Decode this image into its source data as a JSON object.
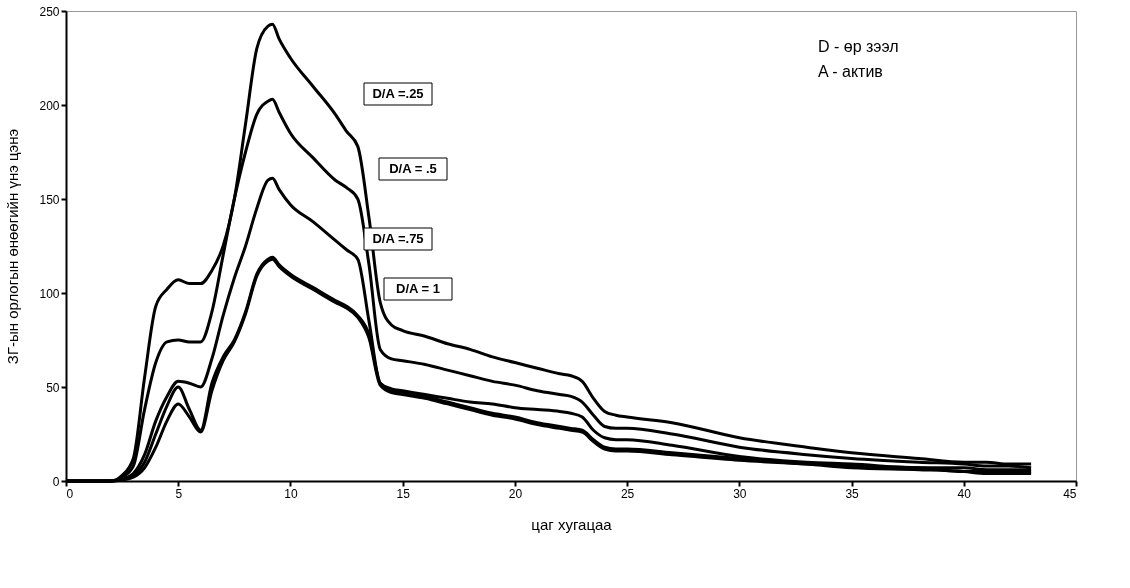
{
  "chart_data": {
    "type": "line",
    "xlabel": "цаг хугацаа",
    "ylabel": "ЗГ-ын орлогын өнөөгийн үнэ цэнэ",
    "x": [
      0,
      2,
      2.5,
      3,
      3.5,
      4,
      4.5,
      5,
      5.5,
      6,
      6.5,
      7,
      7.5,
      8,
      8.5,
      9,
      9.2,
      9.5,
      10,
      11,
      12,
      12.5,
      13,
      13.5,
      14,
      14.5,
      15,
      16,
      17,
      18,
      19,
      20,
      21,
      22,
      22.5,
      23,
      23.5,
      24,
      24.5,
      25,
      27,
      30,
      33,
      35,
      38,
      40,
      41,
      42,
      43
    ],
    "series": [
      {
        "color": "#000000",
        "values": [
          0,
          0,
          3,
          12,
          55,
          93,
          102,
          107,
          105,
          105,
          112,
          125,
          150,
          190,
          230,
          242,
          243,
          235,
          225,
          210,
          195,
          186,
          178,
          140,
          95,
          83,
          80,
          77,
          73,
          70,
          66,
          63,
          60,
          57,
          56,
          53,
          44,
          37,
          35,
          34,
          31,
          23,
          18,
          15,
          12,
          10,
          10,
          9,
          9
        ]
      },
      {
        "color": "#000000",
        "values": [
          0,
          0,
          2,
          8,
          38,
          63,
          74,
          75,
          74,
          74,
          90,
          120,
          150,
          175,
          195,
          202,
          203,
          196,
          185,
          172,
          160,
          156,
          150,
          115,
          70,
          65,
          64,
          62,
          59,
          56,
          53,
          51,
          48,
          46,
          45,
          42,
          35,
          29,
          28,
          28,
          25,
          18,
          14,
          12,
          10,
          9,
          8,
          8,
          7
        ]
      },
      {
        "color": "#000000",
        "values": [
          0,
          0,
          1,
          4,
          14,
          32,
          45,
          53,
          52,
          50,
          65,
          88,
          108,
          125,
          145,
          160,
          161,
          155,
          147,
          138,
          128,
          123,
          118,
          85,
          52,
          49,
          48,
          46,
          44,
          42,
          41,
          39,
          38,
          37,
          36,
          34,
          27,
          23,
          22,
          22,
          19,
          13,
          10,
          9,
          7,
          7,
          6,
          6,
          6
        ]
      },
      {
        "color": "#000000",
        "values": [
          0,
          0,
          1,
          3,
          10,
          25,
          40,
          50,
          38,
          27,
          52,
          66,
          75,
          90,
          110,
          118,
          119,
          115,
          110,
          103,
          96,
          93,
          88,
          78,
          52,
          48,
          47,
          45,
          42,
          39,
          36,
          34,
          31,
          29,
          28,
          27,
          22,
          18,
          17,
          17,
          15,
          12,
          9,
          8,
          7,
          5,
          5,
          5,
          5
        ]
      },
      {
        "color": "#000000",
        "values": [
          0,
          0,
          0.5,
          2,
          7,
          18,
          32,
          41,
          34,
          26,
          48,
          64,
          74,
          89,
          109,
          117,
          118,
          114,
          109,
          102,
          95,
          92,
          87,
          76,
          51,
          47,
          46,
          44,
          41,
          38,
          35,
          33,
          30,
          28,
          27,
          26,
          21,
          17,
          16,
          16,
          14,
          11,
          9,
          7,
          6,
          5,
          4,
          4,
          4
        ]
      }
    ],
    "xlim": [
      0,
      45
    ],
    "xticks": [
      0,
      5,
      10,
      15,
      20,
      25,
      30,
      35,
      40,
      45
    ],
    "ylim": [
      0,
      250
    ],
    "yticks": [
      0,
      50,
      100,
      150,
      200,
      250
    ],
    "grid": false,
    "legend": false,
    "marker": "none",
    "line_style": "solid",
    "annotations": [
      "D/A =.25",
      "D/A = .5",
      "D/A =.75",
      "D/A = 1",
      "D - өр зээл",
      "A - актив"
    ]
  }
}
